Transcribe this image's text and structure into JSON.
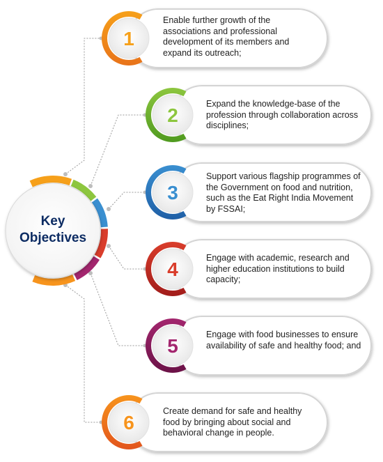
{
  "hub": {
    "line1": "Key",
    "line2": "Objectives"
  },
  "objectives": [
    {
      "number": "1",
      "text": "Enable further growth of the associations and professional development of its members and expand its outreach;",
      "color": "#f6a01a",
      "color_dark": "#e8731a"
    },
    {
      "number": "2",
      "text": "Expand the knowledge-base of the profession through collaboration across disciplines;",
      "color": "#8dc63f",
      "color_dark": "#4f9a1f"
    },
    {
      "number": "3",
      "text": "Support various flagship programmes of the Government on food and nutrition, such as the Eat Right India Movement by FSSAI;",
      "color": "#3a8fd0",
      "color_dark": "#1f5fa6"
    },
    {
      "number": "4",
      "text": "Engage with academic, research and higher education institutions to build capacity;",
      "color": "#d93d2b",
      "color_dark": "#a11c1a"
    },
    {
      "number": "5",
      "text": "Engage with food businesses to ensure availability of safe and healthy food; and",
      "color": "#a3266e",
      "color_dark": "#6b1247"
    },
    {
      "number": "6",
      "text": "Create demand for safe and healthy food by bringing about social and behavioral change in people.",
      "color": "#f7941d",
      "color_dark": "#e2541c"
    }
  ]
}
